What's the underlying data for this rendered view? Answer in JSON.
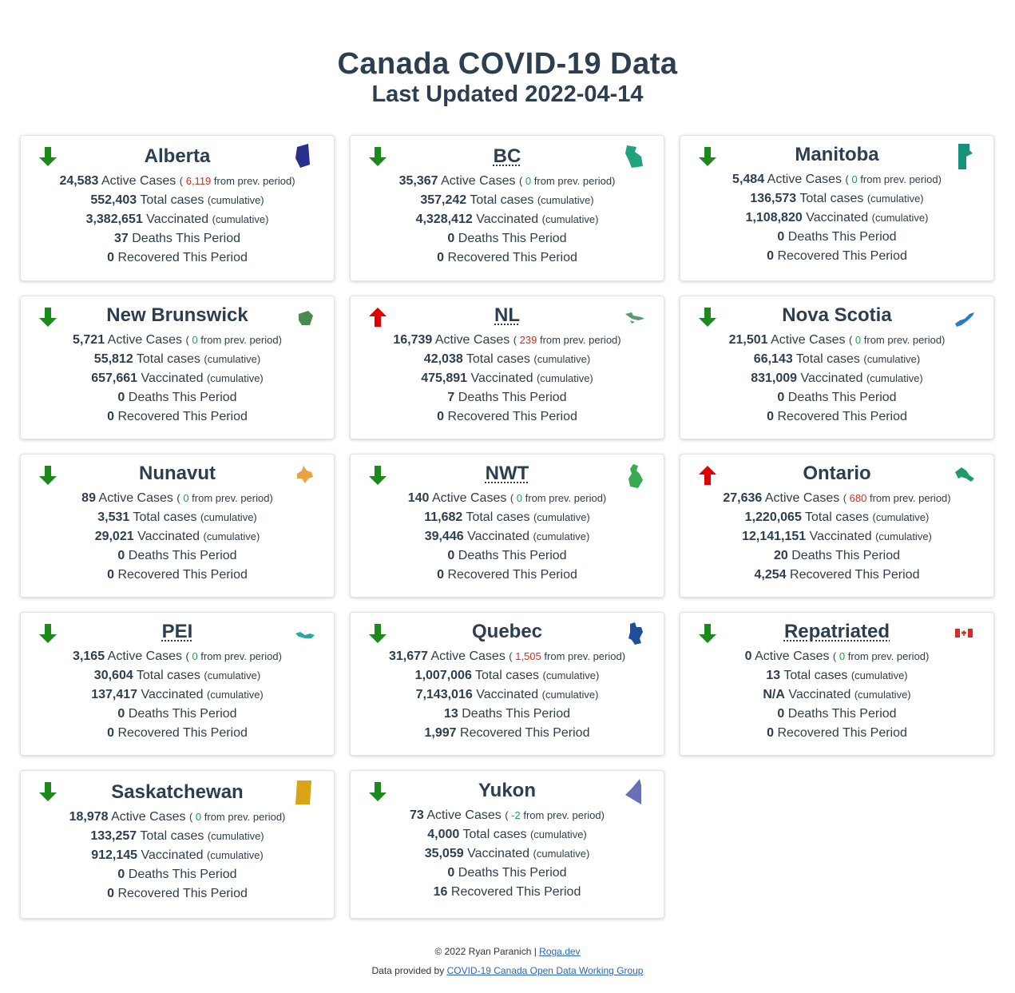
{
  "header": {
    "title": "Canada COVID-19 Data",
    "subtitle": "Last Updated 2022-04-14"
  },
  "labels": {
    "active_cases": "Active Cases",
    "from_prev": "from prev. period",
    "total_cases": "Total cases",
    "cumulative": "(cumulative)",
    "vaccinated": "Vaccinated",
    "deaths": "Deaths This Period",
    "recovered": "Recovered This Period"
  },
  "provinces": [
    {
      "name": "Alberta",
      "abbr": false,
      "trend": "down",
      "active": "24,583",
      "change": "6,119",
      "change_color": "#d62d20",
      "total": "552,403",
      "vaccinated": "3,382,651",
      "deaths": "37",
      "recovered": "0",
      "icon": "alberta-map-icon",
      "icon_color": "#2b2f8c"
    },
    {
      "name": "BC",
      "abbr": true,
      "trend": "down",
      "active": "35,367",
      "change": "0",
      "change_color": "#23a04a",
      "total": "357,242",
      "vaccinated": "4,328,412",
      "deaths": "0",
      "recovered": "0",
      "icon": "bc-map-icon",
      "icon_color": "#1fa37f"
    },
    {
      "name": "Manitoba",
      "abbr": false,
      "trend": "down",
      "active": "5,484",
      "change": "0",
      "change_color": "#23a04a",
      "total": "136,573",
      "vaccinated": "1,108,820",
      "deaths": "0",
      "recovered": "0",
      "icon": "manitoba-map-icon",
      "icon_color": "#16927a"
    },
    {
      "name": "New Brunswick",
      "abbr": false,
      "trend": "down",
      "active": "5,721",
      "change": "0",
      "change_color": "#23a04a",
      "total": "55,812",
      "vaccinated": "657,661",
      "deaths": "0",
      "recovered": "0",
      "icon": "new-brunswick-map-icon",
      "icon_color": "#4a8a4e"
    },
    {
      "name": "NL",
      "abbr": true,
      "trend": "up",
      "active": "16,739",
      "change": "239",
      "change_color": "#d62d20",
      "total": "42,038",
      "vaccinated": "475,891",
      "deaths": "7",
      "recovered": "0",
      "icon": "nl-map-icon",
      "icon_color": "#5c9a6a"
    },
    {
      "name": "Nova Scotia",
      "abbr": false,
      "trend": "down",
      "active": "21,501",
      "change": "0",
      "change_color": "#23a04a",
      "total": "66,143",
      "vaccinated": "831,009",
      "deaths": "0",
      "recovered": "0",
      "icon": "nova-scotia-map-icon",
      "icon_color": "#2a7cc7"
    },
    {
      "name": "Nunavut",
      "abbr": false,
      "trend": "down",
      "active": "89",
      "change": "0",
      "change_color": "#23a04a",
      "total": "3,531",
      "vaccinated": "29,021",
      "deaths": "0",
      "recovered": "0",
      "icon": "nunavut-map-icon",
      "icon_color": "#e8a440"
    },
    {
      "name": "NWT",
      "abbr": true,
      "trend": "down",
      "active": "140",
      "change": "0",
      "change_color": "#23a04a",
      "total": "11,682",
      "vaccinated": "39,446",
      "deaths": "0",
      "recovered": "0",
      "icon": "nwt-map-icon",
      "icon_color": "#3aaa52"
    },
    {
      "name": "Ontario",
      "abbr": false,
      "trend": "up",
      "active": "27,636",
      "change": "680",
      "change_color": "#d62d20",
      "total": "1,220,065",
      "vaccinated": "12,141,151",
      "deaths": "20",
      "recovered": "4,254",
      "icon": "ontario-map-icon",
      "icon_color": "#1f9a6a"
    },
    {
      "name": "PEI",
      "abbr": true,
      "trend": "down",
      "active": "3,165",
      "change": "0",
      "change_color": "#23a04a",
      "total": "30,604",
      "vaccinated": "137,417",
      "deaths": "0",
      "recovered": "0",
      "icon": "pei-map-icon",
      "icon_color": "#2aa8a0"
    },
    {
      "name": "Quebec",
      "abbr": false,
      "trend": "down",
      "active": "31,677",
      "change": "1,505",
      "change_color": "#d62d20",
      "total": "1,007,006",
      "vaccinated": "7,143,016",
      "deaths": "13",
      "recovered": "1,997",
      "icon": "quebec-map-icon",
      "icon_color": "#1f4f9a"
    },
    {
      "name": "Repatriated",
      "abbr": true,
      "trend": "down",
      "active": "0",
      "change": "0",
      "change_color": "#23a04a",
      "total": "13",
      "vaccinated": "N/A",
      "deaths": "0",
      "recovered": "0",
      "icon": "canada-flag-icon",
      "icon_color": "#d62d20"
    },
    {
      "name": "Saskatchewan",
      "abbr": false,
      "trend": "down",
      "active": "18,978",
      "change": "0",
      "change_color": "#23a04a",
      "total": "133,257",
      "vaccinated": "912,145",
      "deaths": "0",
      "recovered": "0",
      "icon": "saskatchewan-map-icon",
      "icon_color": "#d9a514"
    },
    {
      "name": "Yukon",
      "abbr": false,
      "trend": "down",
      "active": "73",
      "change": "-2",
      "change_color": "#23a04a",
      "total": "4,000",
      "vaccinated": "35,059",
      "deaths": "0",
      "recovered": "16",
      "icon": "yukon-map-icon",
      "icon_color": "#6a70b8"
    }
  ],
  "footer": {
    "copyright": "© 2022 Ryan Paranich |",
    "site_link": "Roga.dev",
    "data_prefix": "Data provided by",
    "data_link": "COVID-19 Canada Open Data Working Group"
  }
}
